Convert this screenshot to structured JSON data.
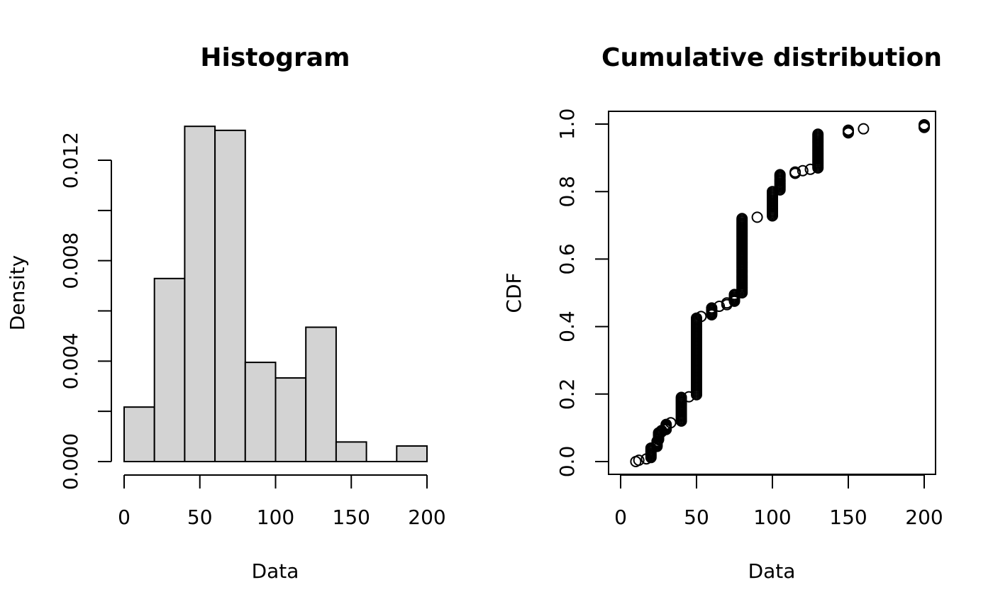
{
  "chart_data": [
    {
      "type": "bar",
      "title": "Histogram",
      "xlabel": "Data",
      "ylabel": "Density",
      "bins": [
        [
          0,
          20
        ],
        [
          20,
          40
        ],
        [
          40,
          60
        ],
        [
          60,
          80
        ],
        [
          80,
          100
        ],
        [
          100,
          120
        ],
        [
          120,
          140
        ],
        [
          140,
          160
        ],
        [
          160,
          180
        ],
        [
          180,
          200
        ]
      ],
      "values": [
        0.00217,
        0.00729,
        0.01335,
        0.01319,
        0.00395,
        0.00333,
        0.00535,
        0.00078,
        0.0,
        0.00062
      ],
      "xlim": [
        0,
        200
      ],
      "ylim": [
        0,
        0.0135
      ],
      "xticks": [
        "0",
        "50",
        "100",
        "150",
        "200"
      ],
      "xtick_values": [
        0,
        50,
        100,
        150,
        200
      ],
      "yticks": [
        "0.000",
        "0.004",
        "0.008",
        "0.012"
      ],
      "ytick_values": [
        0,
        0.004,
        0.008,
        0.012
      ],
      "yminor_values": [
        0.002,
        0.006,
        0.01
      ],
      "grid": false
    },
    {
      "type": "scatter",
      "title": "Cumulative distribution",
      "xlabel": "Data",
      "ylabel": "CDF",
      "xlim": [
        0,
        200
      ],
      "ylim": [
        0,
        1
      ],
      "xticks": [
        "0",
        "50",
        "100",
        "150",
        "200"
      ],
      "xtick_values": [
        0,
        50,
        100,
        150,
        200
      ],
      "yticks": [
        "0.0",
        "0.2",
        "0.4",
        "0.6",
        "0.8",
        "1.0"
      ],
      "ytick_values": [
        0,
        0.2,
        0.4,
        0.6,
        0.8,
        1.0
      ],
      "grid": false,
      "steps": [
        [
          10,
          0.0,
          0.0
        ],
        [
          12,
          0.004,
          0.004
        ],
        [
          17,
          0.008,
          0.008
        ],
        [
          20,
          0.012,
          0.04
        ],
        [
          24,
          0.045,
          0.06
        ],
        [
          25,
          0.065,
          0.085
        ],
        [
          27,
          0.088,
          0.092
        ],
        [
          30,
          0.095,
          0.11
        ],
        [
          33,
          0.115,
          0.115
        ],
        [
          40,
          0.12,
          0.19
        ],
        [
          45,
          0.192,
          0.192
        ],
        [
          50,
          0.198,
          0.425
        ],
        [
          53,
          0.43,
          0.43
        ],
        [
          60,
          0.435,
          0.455
        ],
        [
          65,
          0.46,
          0.46
        ],
        [
          70,
          0.465,
          0.47
        ],
        [
          75,
          0.475,
          0.495
        ],
        [
          80,
          0.5,
          0.72
        ],
        [
          90,
          0.724,
          0.724
        ],
        [
          100,
          0.728,
          0.8
        ],
        [
          105,
          0.805,
          0.85
        ],
        [
          115,
          0.854,
          0.858
        ],
        [
          120,
          0.862,
          0.862
        ],
        [
          125,
          0.866,
          0.866
        ],
        [
          130,
          0.87,
          0.97
        ],
        [
          150,
          0.974,
          0.982
        ],
        [
          160,
          0.986,
          0.986
        ],
        [
          200,
          0.99,
          0.998
        ]
      ]
    }
  ]
}
